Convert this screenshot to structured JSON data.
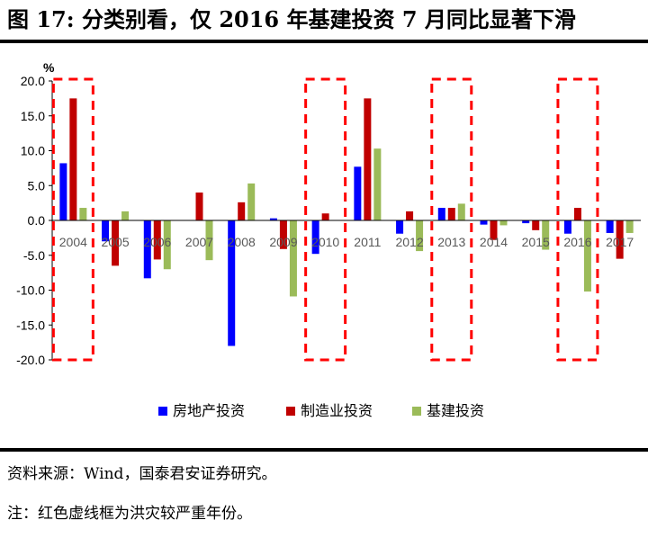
{
  "figure": {
    "title": "图 17: 分类别看，仅 2016 年基建投资 7 月同比显著下滑",
    "source": "资料来源：Wind，国泰君安证券研究。",
    "note": "注：红色虚线框为洪灾较严重年份。"
  },
  "chart_data": {
    "type": "bar",
    "title": "",
    "xlabel": "",
    "ylabel": "%",
    "ylim": [
      -20,
      20
    ],
    "ytick_step": 5,
    "ytick_labels": [
      "20.0",
      "15.0",
      "10.0",
      "5.0",
      "0.0",
      "-5.0",
      "-10.0",
      "-15.0",
      "-20.0"
    ],
    "categories": [
      "2004",
      "2005",
      "2006",
      "2007",
      "2008",
      "2009",
      "2010",
      "2011",
      "2012",
      "2013",
      "2014",
      "2015",
      "2016",
      "2017"
    ],
    "series": [
      {
        "name": "房地产投资",
        "color": "#0000FF",
        "values": [
          8.2,
          -3.0,
          -8.3,
          0,
          -18.0,
          0.3,
          -4.8,
          7.7,
          -1.9,
          1.8,
          -0.6,
          -0.4,
          -1.9,
          -1.8
        ]
      },
      {
        "name": "制造业投资",
        "color": "#C00000",
        "values": [
          17.5,
          -6.5,
          -5.6,
          4.0,
          2.6,
          -4.1,
          1.0,
          17.5,
          1.3,
          1.8,
          -2.8,
          -1.4,
          1.8,
          -5.5
        ]
      },
      {
        "name": "基建投资",
        "color": "#9BBB59",
        "values": [
          1.8,
          1.3,
          -7.0,
          -5.7,
          5.3,
          -10.9,
          0,
          10.3,
          -4.4,
          2.4,
          -0.7,
          -4.2,
          -10.2,
          -1.8
        ]
      }
    ],
    "highlight_years": [
      "2004",
      "2010",
      "2013",
      "2016"
    ],
    "highlight_color": "#FF0000",
    "grid": false,
    "legend_position": "bottom-center"
  }
}
